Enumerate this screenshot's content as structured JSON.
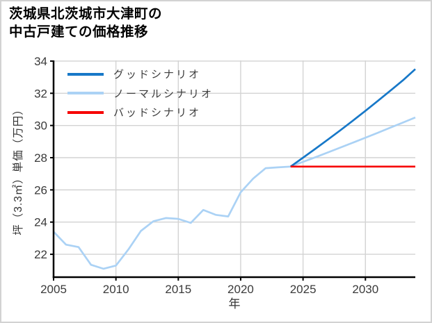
{
  "title": {
    "line1": "茨城県北茨城市大津町の",
    "line2": "中古戸建ての価格推移"
  },
  "colors": {
    "grid": "#d3d3d3",
    "axis": "#000000",
    "tick_label": "#3a3a3a",
    "legend_text": "#3c3c3c",
    "background": "#ffffff",
    "page_border": "#d2d2d2"
  },
  "chart_data": {
    "type": "line",
    "title": "茨城県北茨城市大津町の中古戸建ての価格推移",
    "xlabel": "年",
    "ylabel": "坪（3.3㎡）単価（万円）",
    "xlim": [
      2005,
      2034
    ],
    "ylim": [
      20.58,
      34.04
    ],
    "xticks": [
      2005,
      2010,
      2015,
      2020,
      2025,
      2030
    ],
    "yticks": [
      22,
      24,
      26,
      28,
      30,
      32,
      34
    ],
    "grid": true,
    "legend_position": "upper-left",
    "series": [
      {
        "name": "グッドシナリオ",
        "color": "#1778c8",
        "x": [
          2024,
          2025,
          2026,
          2027,
          2028,
          2029,
          2030,
          2031,
          2032,
          2033,
          2034
        ],
        "values": [
          27.45,
          28.0,
          28.56,
          29.13,
          29.71,
          30.3,
          30.91,
          31.53,
          32.16,
          32.8,
          33.5
        ]
      },
      {
        "name": "ノーマルシナリオ",
        "color": "#abd2f5",
        "x": [
          2005,
          2006,
          2007,
          2008,
          2009,
          2010,
          2011,
          2012,
          2013,
          2014,
          2015,
          2016,
          2017,
          2018,
          2019,
          2020,
          2021,
          2022,
          2023,
          2024,
          2025,
          2026,
          2027,
          2028,
          2029,
          2030,
          2031,
          2032,
          2033,
          2034
        ],
        "values": [
          23.4,
          22.6,
          22.45,
          21.35,
          21.1,
          21.3,
          22.3,
          23.45,
          24.05,
          24.25,
          24.2,
          23.95,
          24.75,
          24.45,
          24.35,
          25.85,
          26.7,
          27.35,
          27.4,
          27.45,
          27.74,
          28.03,
          28.33,
          28.63,
          28.93,
          29.24,
          29.55,
          29.87,
          30.18,
          30.5
        ]
      },
      {
        "name": "バッドシナリオ",
        "color": "#f60000",
        "x": [
          2024,
          2025,
          2026,
          2027,
          2028,
          2029,
          2030,
          2031,
          2032,
          2033,
          2034
        ],
        "values": [
          27.45,
          27.45,
          27.45,
          27.45,
          27.45,
          27.45,
          27.45,
          27.45,
          27.45,
          27.45,
          27.45
        ]
      }
    ]
  }
}
